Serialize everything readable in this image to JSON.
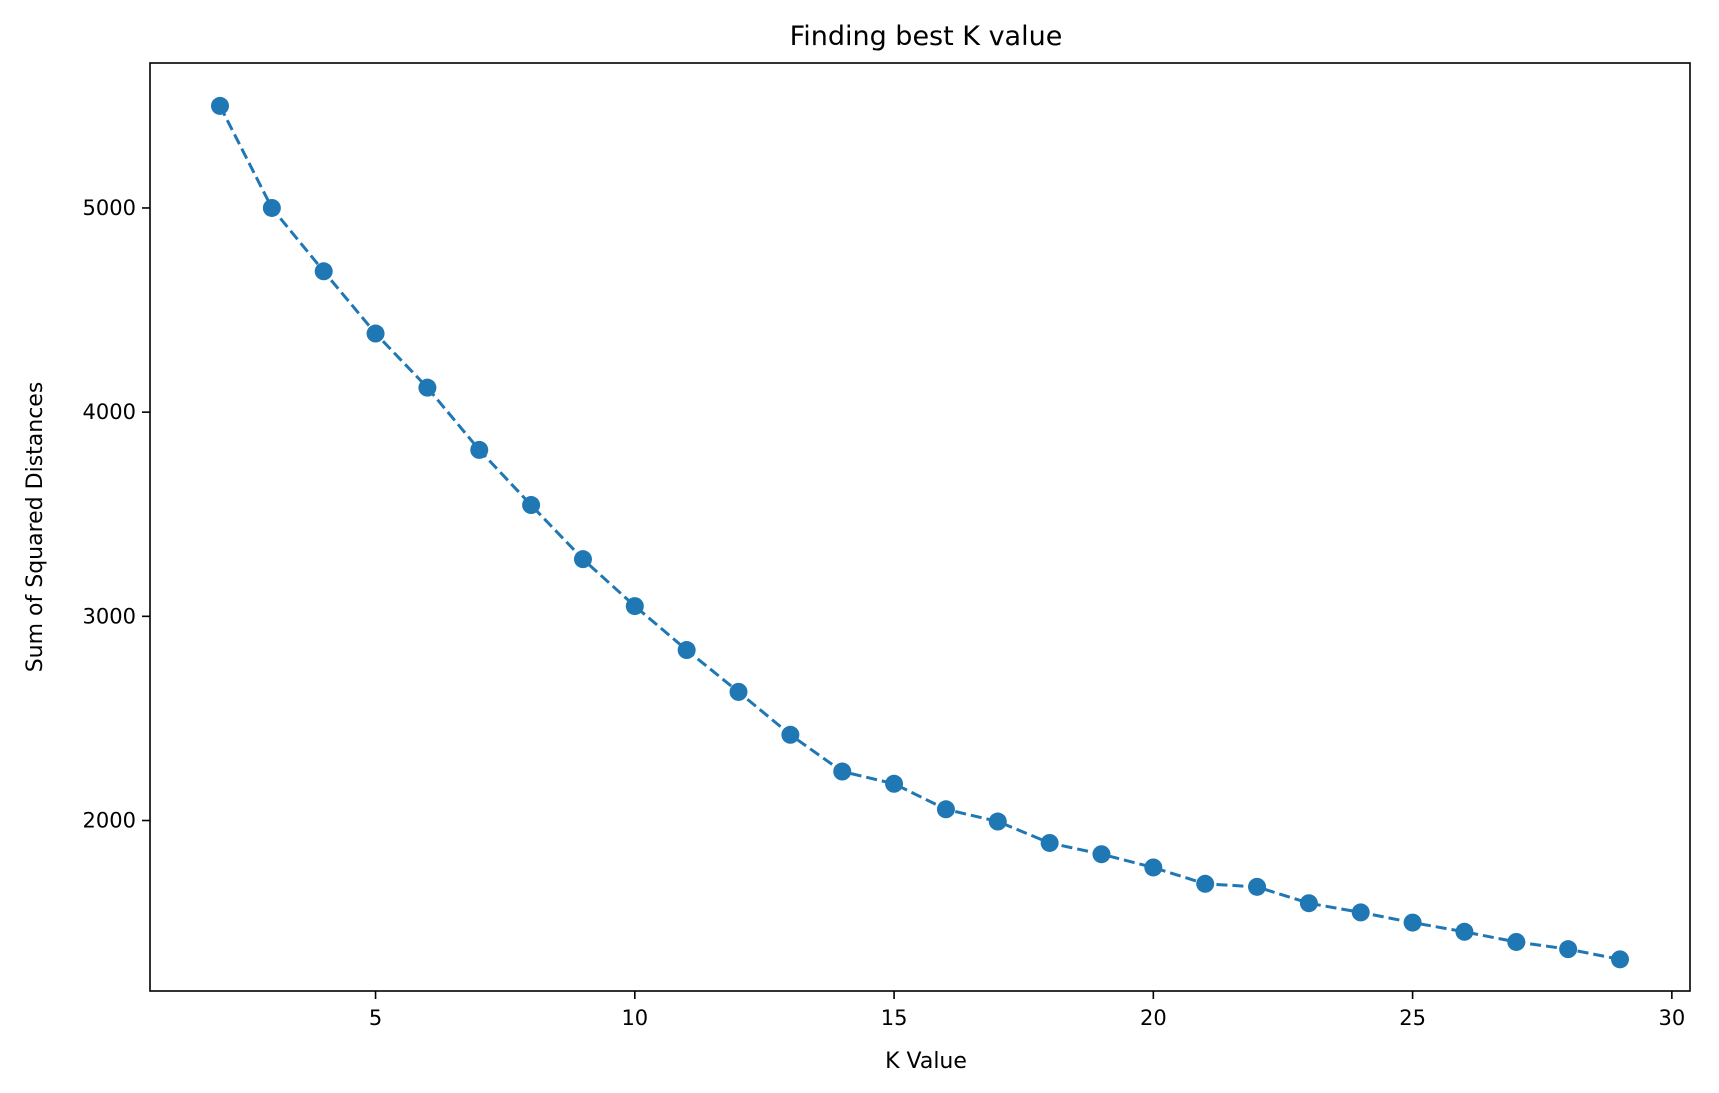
{
  "chart_data": {
    "type": "line",
    "title": "Finding best K value",
    "xlabel": "K Value",
    "ylabel": "Sum of Squared Distances",
    "xlim": [
      0.65,
      30.35
    ],
    "ylim": [
      1165,
      5710
    ],
    "xticks": [
      5,
      10,
      15,
      20,
      25,
      30
    ],
    "yticks": [
      2000,
      3000,
      4000,
      5000
    ],
    "grid": false,
    "line_style": "dashed",
    "marker": "circle",
    "color": "#1f77b4",
    "series": [
      {
        "x": [
          2,
          3,
          4,
          5,
          6,
          7,
          8,
          9,
          10,
          11,
          12,
          13,
          14,
          15,
          16,
          17,
          18,
          19,
          20,
          21,
          22,
          23,
          24,
          25,
          26,
          27,
          28,
          29
        ],
        "values": [
          5500,
          5000,
          4690,
          4385,
          4120,
          3815,
          3545,
          3280,
          3050,
          2835,
          2630,
          2420,
          2240,
          2180,
          2055,
          1995,
          1890,
          1835,
          1770,
          1690,
          1675,
          1595,
          1550,
          1500,
          1455,
          1405,
          1370,
          1320
        ]
      }
    ]
  }
}
